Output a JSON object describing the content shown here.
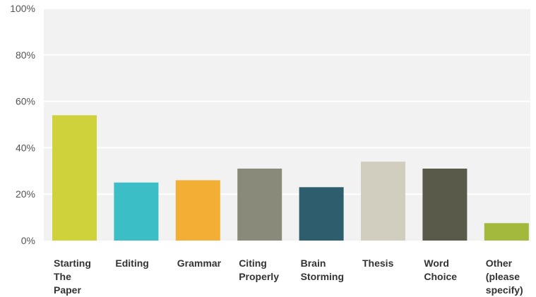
{
  "chart_data": {
    "type": "bar",
    "categories": [
      "Starting\nThe\nPaper",
      "Editing",
      "Grammar",
      "Citing\nProperly",
      "Brain\nStorming",
      "Thesis",
      "Word\nChoice",
      "Other\n(please\nspecify)"
    ],
    "series": [
      {
        "values": [
          54,
          25,
          26,
          31,
          23,
          34,
          31,
          7.5
        ],
        "colors": [
          "#cfd23a",
          "#3bbec5",
          "#f2ae35",
          "#8a8a7a",
          "#2e5e6e",
          "#d1cdbf",
          "#5a5a4a",
          "#a3b93c"
        ]
      }
    ],
    "yticks": [
      "0%",
      "20%",
      "40%",
      "60%",
      "80%",
      "100%"
    ],
    "ylim": [
      0,
      100
    ],
    "grid": true,
    "plot_background": "#f2f2f2",
    "gridline_color": "#ffffff"
  }
}
